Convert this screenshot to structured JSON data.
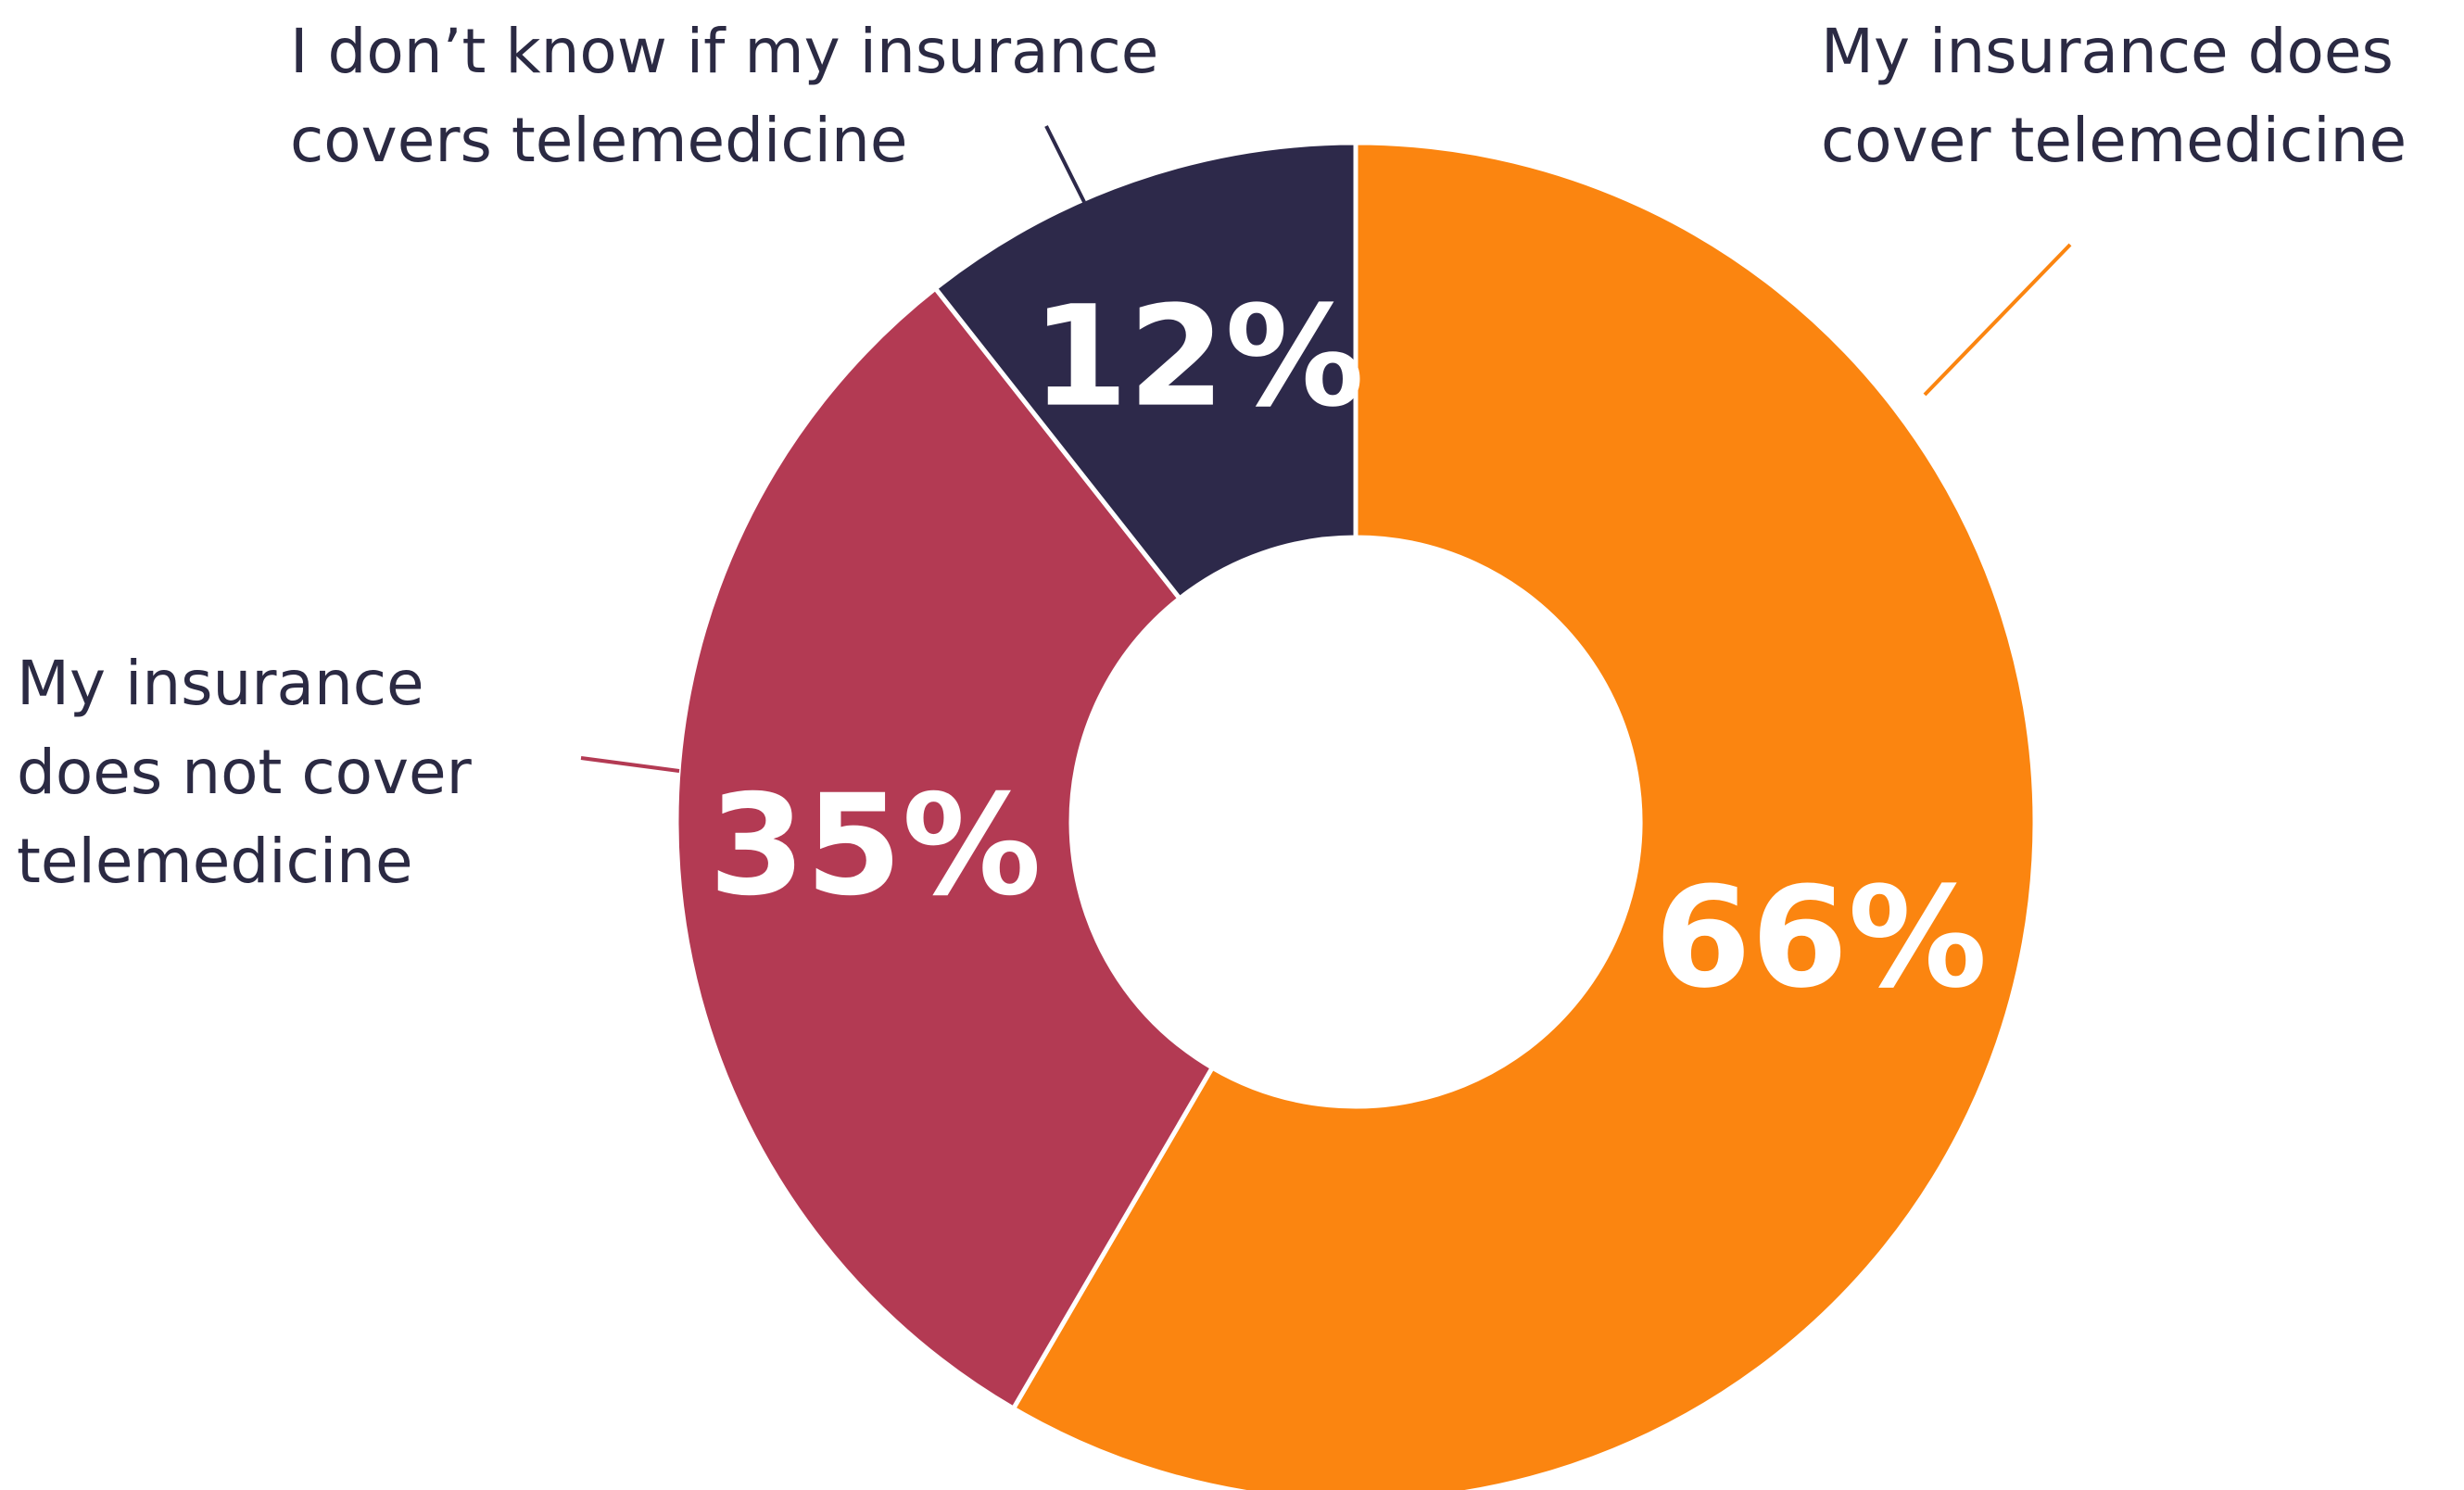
{
  "chart_data": {
    "type": "pie",
    "donut": true,
    "categories": [
      "My insurance does cover telemedicine",
      "My insurance does not cover telemedicine",
      "I don’t know if my insurance covers telemedicine"
    ],
    "values": [
      66,
      35,
      12
    ],
    "value_labels": [
      "66%",
      "35%",
      "12%"
    ],
    "colors": [
      "#fb8510",
      "#b33a53",
      "#2d294a"
    ]
  }
}
